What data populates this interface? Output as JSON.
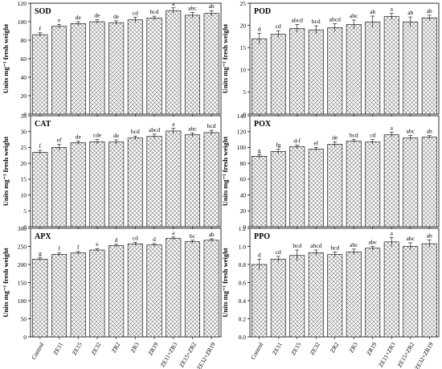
{
  "figure": {
    "ylabel": "Units mg⁻¹ fresh weight",
    "categories": [
      "Control",
      "ZE11",
      "ZE15",
      "ZE32",
      "ZR2",
      "ZR3",
      "ZR19",
      "ZE11+ZR3",
      "ZE15+ZR2",
      "ZE32+ZR19"
    ]
  },
  "chart_data": [
    {
      "type": "bar",
      "title": "SOD",
      "categories": [
        "Control",
        "ZE11",
        "ZE15",
        "ZE32",
        "ZR2",
        "ZR3",
        "ZR19",
        "ZE11+ZR3",
        "ZE15+ZR2",
        "ZE32+ZR19"
      ],
      "values": [
        86,
        95,
        98,
        100,
        99,
        102,
        104,
        112,
        107,
        109
      ],
      "errors": [
        2,
        2,
        2,
        2,
        2,
        3,
        2,
        3,
        3,
        3
      ],
      "letters": [
        "f",
        "e",
        "de",
        "de",
        "de",
        "cd",
        "bcd",
        "a",
        "abc",
        "ab"
      ],
      "ylim": [
        0,
        120
      ],
      "yticks": [
        0,
        20,
        40,
        60,
        80,
        100,
        120
      ],
      "ylabel": "Units mg⁻¹ fresh weight",
      "xlabel": ""
    },
    {
      "type": "bar",
      "title": "POD",
      "categories": [
        "Control",
        "ZE11",
        "ZE15",
        "ZE32",
        "ZR2",
        "ZR3",
        "ZR19",
        "ZE11+ZR3",
        "ZE15+ZR2",
        "ZE32+ZR19"
      ],
      "values": [
        17.0,
        18.0,
        19.3,
        19.0,
        19.5,
        20.2,
        20.8,
        22.0,
        20.8,
        21.7
      ],
      "errors": [
        1.2,
        0.8,
        0.9,
        0.9,
        0.9,
        1.0,
        1.3,
        0.7,
        1.1,
        0.6
      ],
      "letters": [
        "d",
        "cd",
        "abcd",
        "bcd",
        "abcd",
        "abc",
        "ab",
        "a",
        "ab",
        "ab"
      ],
      "ylim": [
        0,
        25
      ],
      "yticks": [
        0,
        5,
        10,
        15,
        20,
        25
      ],
      "ylabel": "",
      "xlabel": ""
    },
    {
      "type": "bar",
      "title": "CAT",
      "categories": [
        "Control",
        "ZE11",
        "ZE15",
        "ZE32",
        "ZR2",
        "ZR3",
        "ZR19",
        "ZE11+ZR3",
        "ZE15+ZR2",
        "ZE32+ZR19"
      ],
      "values": [
        23.5,
        25.0,
        26.5,
        26.8,
        26.7,
        28.0,
        28.5,
        30.2,
        29.0,
        29.7
      ],
      "errors": [
        0.6,
        1.0,
        0.5,
        0.7,
        0.7,
        0.6,
        0.7,
        0.9,
        0.6,
        0.7
      ],
      "letters": [
        "f",
        "ef",
        "de",
        "cde",
        "de",
        "bcd",
        "abcd",
        "a",
        "abc",
        "bcd"
      ],
      "ylim": [
        0,
        35
      ],
      "yticks": [
        0,
        5,
        10,
        15,
        20,
        25,
        30,
        35
      ],
      "ylabel": "Units mg⁻¹ fresh weight",
      "xlabel": ""
    },
    {
      "type": "bar",
      "title": "POX",
      "categories": [
        "Control",
        "ZE11",
        "ZE15",
        "ZE32",
        "ZR2",
        "ZR3",
        "ZR19",
        "ZE11+ZR3",
        "ZE15+ZR2",
        "ZE32+ZR19"
      ],
      "values": [
        89,
        95,
        101,
        98,
        104,
        108,
        107,
        116,
        112,
        113
      ],
      "errors": [
        2,
        3,
        2,
        2,
        3,
        2,
        3,
        3,
        3,
        2
      ],
      "letters": [
        "g",
        "fg",
        "d-f",
        "ef",
        "de",
        "bcd",
        "cd",
        "a",
        "abc",
        "ab"
      ],
      "ylim": [
        0,
        140
      ],
      "yticks": [
        0,
        20,
        40,
        60,
        80,
        100,
        120,
        140
      ],
      "ylabel": "",
      "xlabel": ""
    },
    {
      "type": "bar",
      "title": "APX",
      "categories": [
        "Control",
        "ZE11",
        "ZE15",
        "ZE32",
        "ZR2",
        "ZR3",
        "ZR19",
        "ZE11+ZR3",
        "ZE15+ZR2",
        "ZE32+ZR19"
      ],
      "values": [
        215,
        228,
        232,
        240,
        252,
        257,
        254,
        272,
        263,
        267
      ],
      "errors": [
        4,
        4,
        4,
        4,
        4,
        4,
        4,
        4,
        4,
        4
      ],
      "letters": [
        "g",
        "f",
        "f",
        "e",
        "d",
        "cd",
        "d",
        "a",
        "bc",
        "ab"
      ],
      "ylim": [
        0,
        300
      ],
      "yticks": [
        0,
        50,
        100,
        150,
        200,
        250,
        300
      ],
      "ylabel": "Units mg⁻¹ fresh weight",
      "xlabel": ""
    },
    {
      "type": "bar",
      "title": "PPO",
      "categories": [
        "Control",
        "ZE11",
        "ZE15",
        "ZE32",
        "ZR2",
        "ZR3",
        "ZR19",
        "ZE11+ZR3",
        "ZE15+ZR2",
        "ZE32+ZR19"
      ],
      "values": [
        0.8,
        0.86,
        0.9,
        0.93,
        0.91,
        0.94,
        0.98,
        1.05,
        1.0,
        1.03
      ],
      "errors": [
        0.06,
        0.03,
        0.06,
        0.03,
        0.03,
        0.03,
        0.02,
        0.05,
        0.04,
        0.04
      ],
      "letters": [
        "d",
        "cd",
        "bcd",
        "abcd",
        "bcd",
        "abc",
        "abc",
        "a",
        "abc",
        "ab"
      ],
      "ylim": [
        0.0,
        1.2
      ],
      "yticks": [
        0.0,
        0.2,
        0.4,
        0.6,
        0.8,
        1.0,
        1.2
      ],
      "ylabel": "",
      "xlabel": ""
    }
  ]
}
